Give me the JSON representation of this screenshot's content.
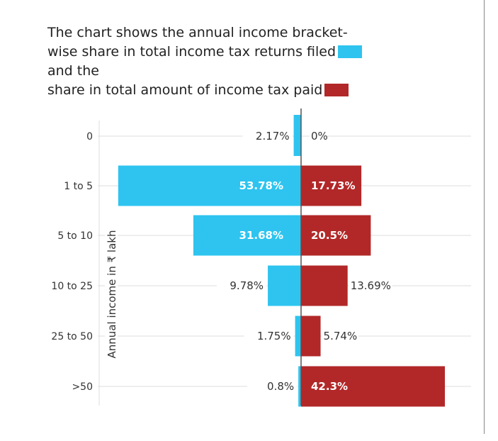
{
  "title": {
    "line1": "The chart shows the annual income bracket-",
    "line2a": "wise share in total income tax returns filed",
    "line2b": "and the",
    "line3": "share in total amount of income tax paid"
  },
  "chart_data": {
    "type": "bar",
    "orientation": "horizontal-diverging",
    "ylabel": "Annual income in ₹ lakh",
    "categories": [
      "0",
      "1 to 5",
      "5 to 10",
      "10 to 25",
      "25 to 50",
      ">50"
    ],
    "series": [
      {
        "name": "share in total income tax returns filed",
        "color": "#2ec4ef",
        "direction": "left",
        "values": [
          2.17,
          53.78,
          31.68,
          9.78,
          1.75,
          0.8
        ],
        "labels": [
          "2.17%",
          "53.78%",
          "31.68%",
          "9.78%",
          "1.75%",
          "0.8%"
        ]
      },
      {
        "name": "share in total amount of income tax paid",
        "color": "#b22828",
        "direction": "right",
        "values": [
          0,
          17.73,
          20.5,
          13.69,
          5.74,
          42.3
        ],
        "labels": [
          "0%",
          "17.73%",
          "20.5%",
          "13.69%",
          "5.74%",
          "42.3%"
        ]
      }
    ],
    "grid": true
  }
}
